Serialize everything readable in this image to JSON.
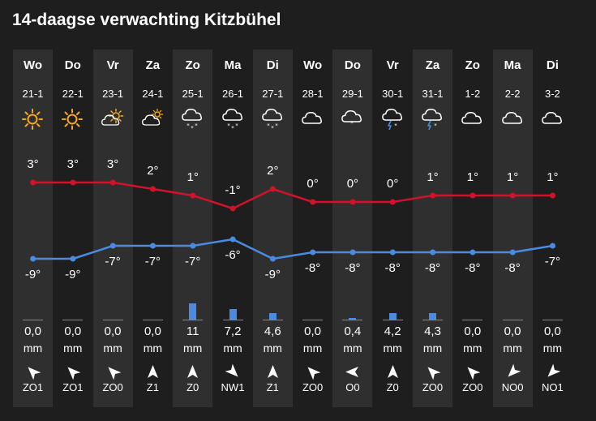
{
  "title": "14-daagse verwachting Kitzbühel",
  "colors": {
    "max": "#d1122a",
    "min": "#4a8ae0",
    "precip": "#4a8ae0",
    "sun": "#f5a623"
  },
  "days": [
    {
      "day": "Wo",
      "date": "21-1",
      "icon": "sun-icon",
      "max": 3,
      "min": -9,
      "max_label": "3°",
      "min_label": "-9°",
      "precip": 0.0,
      "precip_label": "0,0",
      "unit": "mm",
      "wind_dir": "ZO",
      "wind": "ZO1"
    },
    {
      "day": "Do",
      "date": "22-1",
      "icon": "sun-icon",
      "max": 3,
      "min": -9,
      "max_label": "3°",
      "min_label": "-9°",
      "precip": 0.0,
      "precip_label": "0,0",
      "unit": "mm",
      "wind_dir": "ZO",
      "wind": "ZO1"
    },
    {
      "day": "Vr",
      "date": "23-1",
      "icon": "partly-cloudy-icon",
      "max": 3,
      "min": -7,
      "max_label": "3°",
      "min_label": "-7°",
      "precip": 0.0,
      "precip_label": "0,0",
      "unit": "mm",
      "wind_dir": "ZO",
      "wind": "ZO0"
    },
    {
      "day": "Za",
      "date": "24-1",
      "icon": "cloud-sun-icon",
      "max": 2,
      "min": -7,
      "max_label": "2°",
      "min_label": "-7°",
      "precip": 0.0,
      "precip_label": "0,0",
      "unit": "mm",
      "wind_dir": "Z",
      "wind": "Z1"
    },
    {
      "day": "Zo",
      "date": "25-1",
      "icon": "snow-icon",
      "max": 1,
      "min": -7,
      "max_label": "1°",
      "min_label": "-7°",
      "precip": 11,
      "precip_label": "11",
      "unit": "mm",
      "wind_dir": "Z",
      "wind": "Z0"
    },
    {
      "day": "Ma",
      "date": "26-1",
      "icon": "snow-icon",
      "max": -1,
      "min": -6,
      "max_label": "-1°",
      "min_label": "-6°",
      "precip": 7.2,
      "precip_label": "7,2",
      "unit": "mm",
      "wind_dir": "NW",
      "wind": "NW1"
    },
    {
      "day": "Di",
      "date": "27-1",
      "icon": "snow-icon",
      "max": 2,
      "min": -9,
      "max_label": "2°",
      "min_label": "-9°",
      "precip": 4.6,
      "precip_label": "4,6",
      "unit": "mm",
      "wind_dir": "Z",
      "wind": "Z1"
    },
    {
      "day": "Wo",
      "date": "28-1",
      "icon": "cloud-icon",
      "max": 0,
      "min": -8,
      "max_label": "0°",
      "min_label": "-8°",
      "precip": 0.0,
      "precip_label": "0,0",
      "unit": "mm",
      "wind_dir": "ZO",
      "wind": "ZO0"
    },
    {
      "day": "Do",
      "date": "29-1",
      "icon": "cloud-snow-light-icon",
      "max": 0,
      "min": -8,
      "max_label": "0°",
      "min_label": "-8°",
      "precip": 0.4,
      "precip_label": "0,4",
      "unit": "mm",
      "wind_dir": "O",
      "wind": "O0"
    },
    {
      "day": "Vr",
      "date": "30-1",
      "icon": "thunder-snow-icon",
      "max": 0,
      "min": -8,
      "max_label": "0°",
      "min_label": "-8°",
      "precip": 4.2,
      "precip_label": "4,2",
      "unit": "mm",
      "wind_dir": "Z",
      "wind": "Z0"
    },
    {
      "day": "Za",
      "date": "31-1",
      "icon": "thunder-snow-icon",
      "max": 1,
      "min": -8,
      "max_label": "1°",
      "min_label": "-8°",
      "precip": 4.3,
      "precip_label": "4,3",
      "unit": "mm",
      "wind_dir": "ZO",
      "wind": "ZO0"
    },
    {
      "day": "Zo",
      "date": "1-2",
      "icon": "cloud-icon",
      "max": 1,
      "min": -8,
      "max_label": "1°",
      "min_label": "-8°",
      "precip": 0.0,
      "precip_label": "0,0",
      "unit": "mm",
      "wind_dir": "ZO",
      "wind": "ZO0"
    },
    {
      "day": "Ma",
      "date": "2-2",
      "icon": "cloud-icon",
      "max": 1,
      "min": -8,
      "max_label": "1°",
      "min_label": "-8°",
      "precip": 0.0,
      "precip_label": "0,0",
      "unit": "mm",
      "wind_dir": "NO",
      "wind": "NO0"
    },
    {
      "day": "Di",
      "date": "3-2",
      "icon": "cloud-icon",
      "max": 1,
      "min": -7,
      "max_label": "1°",
      "min_label": "-7°",
      "precip": 0.0,
      "precip_label": "0,0",
      "unit": "mm",
      "wind_dir": "NO",
      "wind": "NO1"
    }
  ]
}
